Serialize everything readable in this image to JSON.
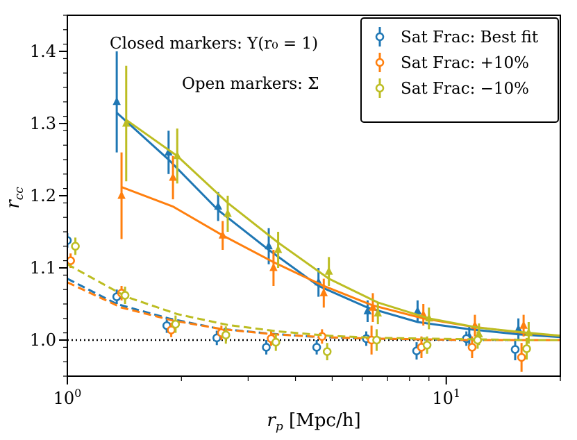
{
  "chart_data": {
    "type": "scatter",
    "xscale": "log",
    "xlim": [
      1,
      20
    ],
    "ylim": [
      0.95,
      1.45
    ],
    "xlabel": "r_p [Mpc/h]",
    "ylabel": "r_cc",
    "xticks": [
      {
        "value": 1,
        "base": "10",
        "exp": "0"
      },
      {
        "value": 10,
        "base": "10",
        "exp": "1"
      }
    ],
    "yticks": [
      "1.0",
      "1.1",
      "1.2",
      "1.3",
      "1.4"
    ],
    "annotations": {
      "closed": "Closed markers: Υ(r₀ = 1)",
      "open": "Open markers: Σ"
    },
    "legend_position": "top-right",
    "reference_line": {
      "y": 1.0,
      "style": "dotted"
    },
    "series": [
      {
        "name": "Sat Frac: Best fit",
        "color": "#1f77b4",
        "closed_markers": [
          {
            "x": 1.35,
            "y": 1.33,
            "err": 0.07
          },
          {
            "x": 1.85,
            "y": 1.26,
            "err": 0.03
          },
          {
            "x": 2.5,
            "y": 1.185,
            "err": 0.02
          },
          {
            "x": 3.4,
            "y": 1.13,
            "err": 0.025
          },
          {
            "x": 4.6,
            "y": 1.08,
            "err": 0.02
          },
          {
            "x": 6.2,
            "y": 1.04,
            "err": 0.015
          },
          {
            "x": 8.4,
            "y": 1.04,
            "err": 0.015
          },
          {
            "x": 11.5,
            "y": 1.005,
            "err": 0.015
          },
          {
            "x": 15.5,
            "y": 1.015,
            "err": 0.015
          }
        ],
        "open_markers": [
          {
            "x": 1.0,
            "y": 1.138,
            "err": 0.01
          },
          {
            "x": 1.35,
            "y": 1.06,
            "err": 0.01
          },
          {
            "x": 1.83,
            "y": 1.02,
            "err": 0.01
          },
          {
            "x": 2.48,
            "y": 1.003,
            "err": 0.01
          },
          {
            "x": 3.35,
            "y": 0.99,
            "err": 0.01
          },
          {
            "x": 4.55,
            "y": 0.99,
            "err": 0.01
          },
          {
            "x": 6.15,
            "y": 1.002,
            "err": 0.01
          },
          {
            "x": 8.35,
            "y": 0.985,
            "err": 0.012
          },
          {
            "x": 11.3,
            "y": 1.002,
            "err": 0.01
          },
          {
            "x": 15.2,
            "y": 0.987,
            "err": 0.015
          }
        ],
        "closed_line": [
          {
            "x": 1.35,
            "y": 1.315
          },
          {
            "x": 1.85,
            "y": 1.25
          },
          {
            "x": 2.5,
            "y": 1.18
          },
          {
            "x": 3.4,
            "y": 1.125
          },
          {
            "x": 4.6,
            "y": 1.075
          },
          {
            "x": 6.2,
            "y": 1.045
          },
          {
            "x": 8.4,
            "y": 1.025
          },
          {
            "x": 11.5,
            "y": 1.015
          },
          {
            "x": 15.5,
            "y": 1.008
          },
          {
            "x": 20,
            "y": 1.004
          }
        ],
        "open_line": [
          {
            "x": 1.0,
            "y": 1.085
          },
          {
            "x": 1.35,
            "y": 1.05
          },
          {
            "x": 1.85,
            "y": 1.03
          },
          {
            "x": 2.5,
            "y": 1.016
          },
          {
            "x": 3.4,
            "y": 1.009
          },
          {
            "x": 4.6,
            "y": 1.004
          },
          {
            "x": 6.2,
            "y": 1.002
          },
          {
            "x": 8.4,
            "y": 1.001
          },
          {
            "x": 11.5,
            "y": 1.0
          },
          {
            "x": 15.5,
            "y": 1.0
          },
          {
            "x": 20,
            "y": 1.0
          }
        ]
      },
      {
        "name": "Sat Frac: +10%",
        "color": "#ff7f0e",
        "closed_markers": [
          {
            "x": 1.39,
            "y": 1.2,
            "err": 0.06
          },
          {
            "x": 1.9,
            "y": 1.225,
            "err": 0.03
          },
          {
            "x": 2.57,
            "y": 1.145,
            "err": 0.02
          },
          {
            "x": 3.5,
            "y": 1.1,
            "err": 0.025
          },
          {
            "x": 4.75,
            "y": 1.065,
            "err": 0.02
          },
          {
            "x": 6.4,
            "y": 1.045,
            "err": 0.02
          },
          {
            "x": 8.7,
            "y": 1.035,
            "err": 0.015
          },
          {
            "x": 11.9,
            "y": 1.02,
            "err": 0.015
          },
          {
            "x": 16.0,
            "y": 1.02,
            "err": 0.015
          }
        ],
        "open_markers": [
          {
            "x": 1.02,
            "y": 1.11,
            "err": 0.01
          },
          {
            "x": 1.39,
            "y": 1.065,
            "err": 0.01
          },
          {
            "x": 1.88,
            "y": 1.014,
            "err": 0.01
          },
          {
            "x": 2.55,
            "y": 1.01,
            "err": 0.01
          },
          {
            "x": 3.45,
            "y": 1.002,
            "err": 0.01
          },
          {
            "x": 4.7,
            "y": 1.005,
            "err": 0.01
          },
          {
            "x": 6.35,
            "y": 1.0,
            "err": 0.02
          },
          {
            "x": 8.6,
            "y": 0.99,
            "err": 0.015
          },
          {
            "x": 11.7,
            "y": 0.99,
            "err": 0.015
          },
          {
            "x": 15.8,
            "y": 0.976,
            "err": 0.02
          }
        ],
        "closed_line": [
          {
            "x": 1.39,
            "y": 1.212
          },
          {
            "x": 1.9,
            "y": 1.185
          },
          {
            "x": 2.57,
            "y": 1.145
          },
          {
            "x": 3.5,
            "y": 1.108
          },
          {
            "x": 4.75,
            "y": 1.075
          },
          {
            "x": 6.4,
            "y": 1.048
          },
          {
            "x": 8.7,
            "y": 1.03
          },
          {
            "x": 11.9,
            "y": 1.018
          },
          {
            "x": 16.0,
            "y": 1.01
          },
          {
            "x": 20,
            "y": 1.006
          }
        ],
        "open_line": [
          {
            "x": 1.0,
            "y": 1.08
          },
          {
            "x": 1.39,
            "y": 1.045
          },
          {
            "x": 1.9,
            "y": 1.027
          },
          {
            "x": 2.57,
            "y": 1.015
          },
          {
            "x": 3.5,
            "y": 1.008
          },
          {
            "x": 4.75,
            "y": 1.004
          },
          {
            "x": 6.4,
            "y": 1.002
          },
          {
            "x": 8.7,
            "y": 1.001
          },
          {
            "x": 11.9,
            "y": 1.0
          },
          {
            "x": 16.0,
            "y": 1.0
          },
          {
            "x": 20,
            "y": 1.0
          }
        ]
      },
      {
        "name": "Sat Frac: −10%",
        "color": "#bcbd22",
        "closed_markers": [
          {
            "x": 1.43,
            "y": 1.3,
            "err": 0.08
          },
          {
            "x": 1.95,
            "y": 1.255,
            "err": 0.038
          },
          {
            "x": 2.65,
            "y": 1.175,
            "err": 0.025
          },
          {
            "x": 3.6,
            "y": 1.125,
            "err": 0.025
          },
          {
            "x": 4.9,
            "y": 1.095,
            "err": 0.02
          },
          {
            "x": 6.6,
            "y": 1.037,
            "err": 0.015
          },
          {
            "x": 9.0,
            "y": 1.03,
            "err": 0.015
          },
          {
            "x": 12.2,
            "y": 1.008,
            "err": 0.015
          },
          {
            "x": 16.5,
            "y": 1.01,
            "err": 0.015
          }
        ],
        "open_markers": [
          {
            "x": 1.05,
            "y": 1.13,
            "err": 0.012
          },
          {
            "x": 1.42,
            "y": 1.062,
            "err": 0.012
          },
          {
            "x": 1.93,
            "y": 1.022,
            "err": 0.012
          },
          {
            "x": 2.62,
            "y": 1.007,
            "err": 0.012
          },
          {
            "x": 3.55,
            "y": 0.997,
            "err": 0.012
          },
          {
            "x": 4.85,
            "y": 0.984,
            "err": 0.012
          },
          {
            "x": 6.55,
            "y": 1.0,
            "err": 0.015
          },
          {
            "x": 8.9,
            "y": 0.993,
            "err": 0.012
          },
          {
            "x": 12.1,
            "y": 1.0,
            "err": 0.012
          },
          {
            "x": 16.3,
            "y": 0.988,
            "err": 0.015
          }
        ],
        "closed_line": [
          {
            "x": 1.43,
            "y": 1.305
          },
          {
            "x": 1.95,
            "y": 1.255
          },
          {
            "x": 2.65,
            "y": 1.19
          },
          {
            "x": 3.6,
            "y": 1.135
          },
          {
            "x": 4.9,
            "y": 1.085
          },
          {
            "x": 6.6,
            "y": 1.052
          },
          {
            "x": 9.0,
            "y": 1.03
          },
          {
            "x": 12.2,
            "y": 1.017
          },
          {
            "x": 16.5,
            "y": 1.01
          },
          {
            "x": 20,
            "y": 1.006
          }
        ],
        "open_line": [
          {
            "x": 1.0,
            "y": 1.105
          },
          {
            "x": 1.43,
            "y": 1.06
          },
          {
            "x": 1.95,
            "y": 1.036
          },
          {
            "x": 2.65,
            "y": 1.021
          },
          {
            "x": 3.6,
            "y": 1.012
          },
          {
            "x": 4.9,
            "y": 1.006
          },
          {
            "x": 6.6,
            "y": 1.003
          },
          {
            "x": 9.0,
            "y": 1.002
          },
          {
            "x": 12.2,
            "y": 1.001
          },
          {
            "x": 16.5,
            "y": 1.0
          },
          {
            "x": 20,
            "y": 1.0
          }
        ]
      }
    ]
  }
}
